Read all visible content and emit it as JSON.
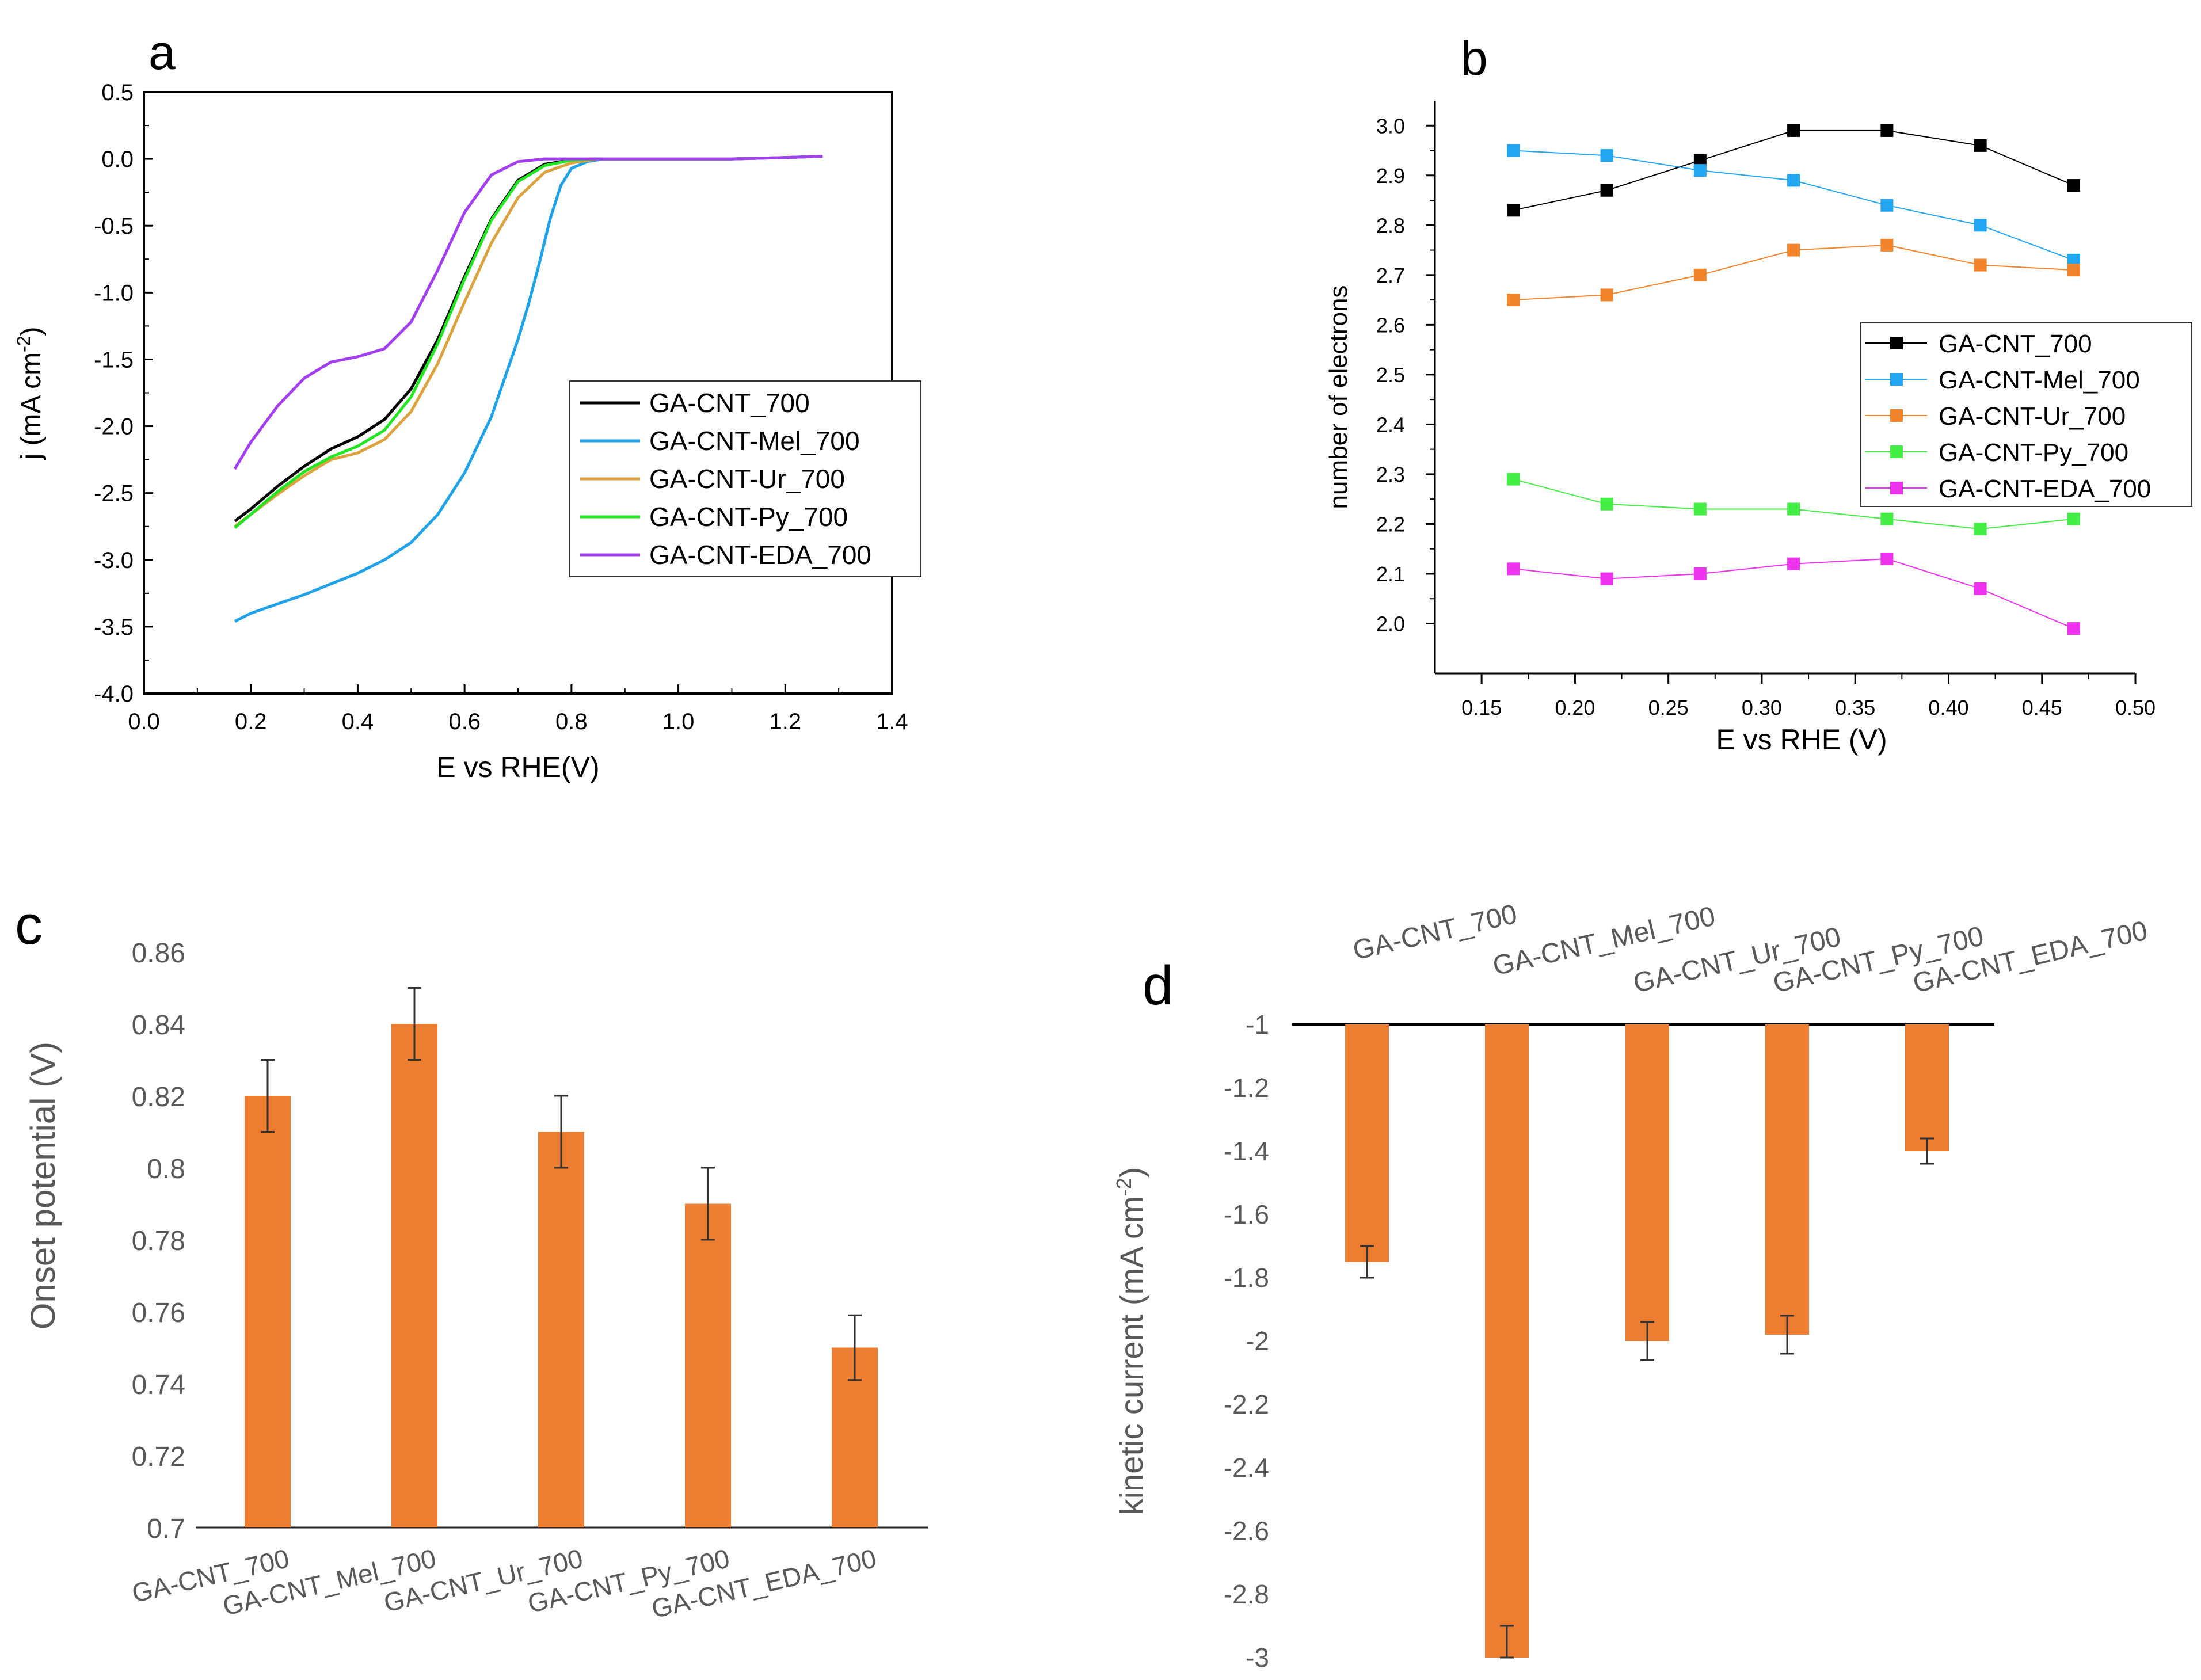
{
  "colors": {
    "GA-CNT_700": "#000000",
    "GA-CNT-Mel_700": "#1fa2e8",
    "GA-CNT-Ur_700": "#dba23e",
    "GA-CNT-Py_700": "#22e622",
    "GA-CNT-EDA_700": "#a33ff0",
    "b_black": "#000000",
    "b_blue": "#22a6f2",
    "b_orange": "#f2852c",
    "b_green": "#44ee44",
    "b_magenta": "#ee33ee",
    "bar": "#ed7d31",
    "grey_text": "#595959"
  },
  "chart_data": [
    {
      "panel": "a",
      "type": "line",
      "panel_label": "a",
      "xlabel": "E vs RHE(V)",
      "ylabel_main": "j (mA cm",
      "ylabel_sup": "-2",
      "ylabel_end": ")",
      "xlim": [
        0.0,
        1.4
      ],
      "ylim": [
        -4.0,
        0.5
      ],
      "xticks": [
        "0.0",
        "0.2",
        "0.4",
        "0.6",
        "0.8",
        "1.0",
        "1.2",
        "1.4"
      ],
      "yticks": [
        "0.5",
        "0.0",
        "-0.5",
        "-1.0",
        "-1.5",
        "-2.0",
        "-2.5",
        "-3.0",
        "-3.5",
        "-4.0"
      ],
      "legend": [
        "GA-CNT_700",
        "GA-CNT-Mel_700",
        "GA-CNT-Ur_700",
        "GA-CNT-Py_700",
        "GA-CNT-EDA_700"
      ],
      "series": [
        {
          "name": "GA-CNT_700",
          "x": [
            0.17,
            0.2,
            0.25,
            0.3,
            0.35,
            0.4,
            0.45,
            0.5,
            0.55,
            0.6,
            0.65,
            0.7,
            0.75,
            0.8,
            0.85,
            0.9,
            1.0,
            1.1,
            1.2,
            1.27
          ],
          "y": [
            -2.71,
            -2.62,
            -2.45,
            -2.3,
            -2.17,
            -2.08,
            -1.95,
            -1.72,
            -1.35,
            -0.88,
            -0.45,
            -0.16,
            -0.04,
            -0.01,
            0.0,
            0.0,
            0.0,
            0.0,
            0.01,
            0.02
          ]
        },
        {
          "name": "GA-CNT-Mel_700",
          "x": [
            0.17,
            0.2,
            0.25,
            0.3,
            0.35,
            0.4,
            0.45,
            0.5,
            0.55,
            0.6,
            0.65,
            0.7,
            0.72,
            0.74,
            0.76,
            0.78,
            0.8,
            0.83,
            0.86,
            0.9,
            1.0,
            1.1,
            1.2,
            1.27
          ],
          "y": [
            -3.46,
            -3.4,
            -3.33,
            -3.26,
            -3.18,
            -3.1,
            -3.0,
            -2.87,
            -2.66,
            -2.35,
            -1.93,
            -1.35,
            -1.08,
            -0.78,
            -0.45,
            -0.2,
            -0.07,
            -0.02,
            0.0,
            0.0,
            0.0,
            0.0,
            0.01,
            0.02
          ]
        },
        {
          "name": "GA-CNT-Ur_700",
          "x": [
            0.17,
            0.2,
            0.25,
            0.3,
            0.35,
            0.4,
            0.45,
            0.5,
            0.55,
            0.6,
            0.65,
            0.7,
            0.75,
            0.8,
            0.85,
            0.9,
            1.0,
            1.1,
            1.2,
            1.27
          ],
          "y": [
            -2.75,
            -2.66,
            -2.51,
            -2.37,
            -2.25,
            -2.2,
            -2.1,
            -1.89,
            -1.53,
            -1.07,
            -0.63,
            -0.29,
            -0.1,
            -0.03,
            0.0,
            0.0,
            0.0,
            0.0,
            0.01,
            0.02
          ]
        },
        {
          "name": "GA-CNT-Py_700",
          "x": [
            0.17,
            0.2,
            0.25,
            0.3,
            0.35,
            0.4,
            0.45,
            0.5,
            0.55,
            0.6,
            0.65,
            0.7,
            0.75,
            0.8,
            0.85,
            0.9,
            1.0,
            1.1,
            1.2,
            1.27
          ],
          "y": [
            -2.76,
            -2.66,
            -2.49,
            -2.34,
            -2.23,
            -2.15,
            -2.03,
            -1.78,
            -1.38,
            -0.9,
            -0.46,
            -0.17,
            -0.05,
            -0.01,
            0.0,
            0.0,
            0.0,
            0.0,
            0.01,
            0.02
          ]
        },
        {
          "name": "GA-CNT-EDA_700",
          "x": [
            0.17,
            0.2,
            0.25,
            0.3,
            0.35,
            0.4,
            0.45,
            0.5,
            0.55,
            0.6,
            0.65,
            0.7,
            0.75,
            0.8,
            0.85,
            0.9,
            1.0,
            1.1,
            1.2,
            1.27
          ],
          "y": [
            -2.32,
            -2.12,
            -1.85,
            -1.64,
            -1.52,
            -1.48,
            -1.42,
            -1.22,
            -0.83,
            -0.4,
            -0.12,
            -0.02,
            0.0,
            0.0,
            0.0,
            0.0,
            0.0,
            0.0,
            0.01,
            0.02
          ]
        }
      ]
    },
    {
      "panel": "b",
      "type": "line",
      "panel_label": "b",
      "xlabel": "E vs RHE (V)",
      "ylabel": "number of electrons",
      "xlim": [
        0.125,
        0.5
      ],
      "ylim": [
        1.9,
        3.05
      ],
      "xticks": [
        "0.15",
        "0.20",
        "0.25",
        "0.30",
        "0.35",
        "0.40",
        "0.45",
        "0.50"
      ],
      "yticks": [
        "2.0",
        "2.1",
        "2.2",
        "2.3",
        "2.4",
        "2.5",
        "2.6",
        "2.7",
        "2.8",
        "2.9",
        "3.0"
      ],
      "x": [
        0.167,
        0.217,
        0.267,
        0.317,
        0.367,
        0.417,
        0.467
      ],
      "legend": [
        "GA-CNT_700",
        "GA-CNT-Mel_700",
        "GA-CNT-Ur_700",
        "GA-CNT-Py_700",
        "GA-CNT-EDA_700"
      ],
      "series": [
        {
          "name": "GA-CNT_700",
          "values": [
            2.83,
            2.87,
            2.93,
            2.99,
            2.99,
            2.96,
            2.88
          ]
        },
        {
          "name": "GA-CNT-Mel_700",
          "values": [
            2.95,
            2.94,
            2.91,
            2.89,
            2.84,
            2.8,
            2.73
          ]
        },
        {
          "name": "GA-CNT-Ur_700",
          "values": [
            2.65,
            2.66,
            2.7,
            2.75,
            2.76,
            2.72,
            2.71
          ]
        },
        {
          "name": "GA-CNT-Py_700",
          "values": [
            2.29,
            2.24,
            2.23,
            2.23,
            2.21,
            2.19,
            2.21
          ]
        },
        {
          "name": "GA-CNT-EDA_700",
          "values": [
            2.11,
            2.09,
            2.1,
            2.12,
            2.13,
            2.07,
            1.99
          ]
        }
      ]
    },
    {
      "panel": "c",
      "type": "bar",
      "panel_label": "c",
      "ylabel": "Onset potential (V)",
      "ylim": [
        0.7,
        0.86
      ],
      "yticks": [
        "0.86",
        "0.84",
        "0.82",
        "0.8",
        "0.78",
        "0.76",
        "0.74",
        "0.72",
        "0.7"
      ],
      "categories": [
        "GA-CNT_700",
        "GA-CNT_Mel_700",
        "GA-CNT_Ur_700",
        "GA-CNT_Py_700",
        "GA-CNT_EDA_700"
      ],
      "values": [
        0.82,
        0.84,
        0.81,
        0.79,
        0.75
      ],
      "errors": [
        0.01,
        0.01,
        0.01,
        0.01,
        0.009
      ]
    },
    {
      "panel": "d",
      "type": "bar",
      "panel_label": "d",
      "ylabel_main": "kinetic current (mA cm",
      "ylabel_sup": "-2",
      "ylabel_end": ")",
      "ylim": [
        -3.0,
        -1.0
      ],
      "yticks": [
        "-1",
        "-1.2",
        "-1.4",
        "-1.6",
        "-1.8",
        "-2",
        "-2.2",
        "-2.4",
        "-2.6",
        "-2.8",
        "-3"
      ],
      "categories": [
        "GA-CNT_700",
        "GA-CNT_Mel_700",
        "GA-CNT_Ur_700",
        "GA-CNT_Py_700",
        "GA-CNT_EDA_700"
      ],
      "values": [
        -1.75,
        -3.0,
        -2.0,
        -1.98,
        -1.4
      ],
      "errors": [
        0.05,
        0.1,
        0.06,
        0.06,
        0.04
      ]
    }
  ]
}
